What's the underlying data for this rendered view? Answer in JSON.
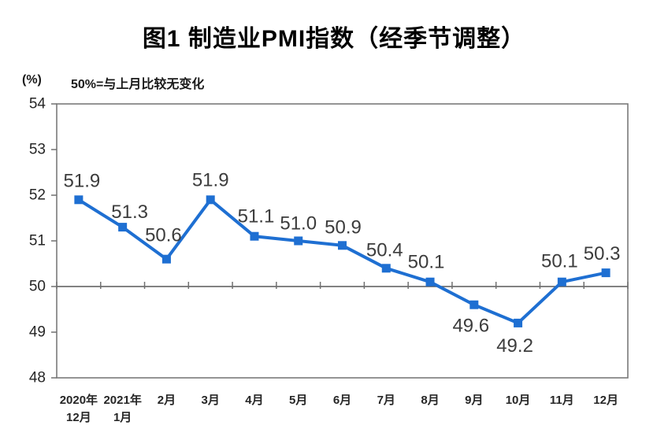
{
  "chart_data": {
    "type": "line",
    "title": "图1 制造业PMI指数（经季节调整）",
    "unit_label": "(%)",
    "note": "50%=与上月比较无变化",
    "categories": [
      [
        "2020年",
        "12月"
      ],
      [
        "2021年",
        "1月"
      ],
      [
        "2月"
      ],
      [
        "3月"
      ],
      [
        "4月"
      ],
      [
        "5月"
      ],
      [
        "6月"
      ],
      [
        "7月"
      ],
      [
        "8月"
      ],
      [
        "9月"
      ],
      [
        "10月"
      ],
      [
        "11月"
      ],
      [
        "12月"
      ]
    ],
    "values": [
      51.9,
      51.3,
      50.6,
      51.9,
      51.1,
      51.0,
      50.9,
      50.4,
      50.1,
      49.6,
      49.2,
      50.1,
      50.3
    ],
    "point_labels": [
      "51.9",
      "51.3",
      "50.6",
      "51.9",
      "51.1",
      "51.0",
      "50.9",
      "50.4",
      "50.1",
      "49.6",
      "49.2",
      "50.1",
      "50.3"
    ],
    "ylim": [
      48,
      54
    ],
    "y_ticks": [
      54,
      53,
      52,
      51,
      50,
      49,
      48
    ],
    "baseline_value": 50,
    "grid": "off",
    "legend": "none",
    "marker": "square",
    "colors": {
      "line": "#1E6FD2",
      "frame": "#7a7a7a",
      "baseline": "#595959",
      "tick": "#707070",
      "title_text": "#000000",
      "axis_text": "#262626",
      "data_label_text": "#3c3c3c",
      "background": "#ffffff"
    }
  }
}
